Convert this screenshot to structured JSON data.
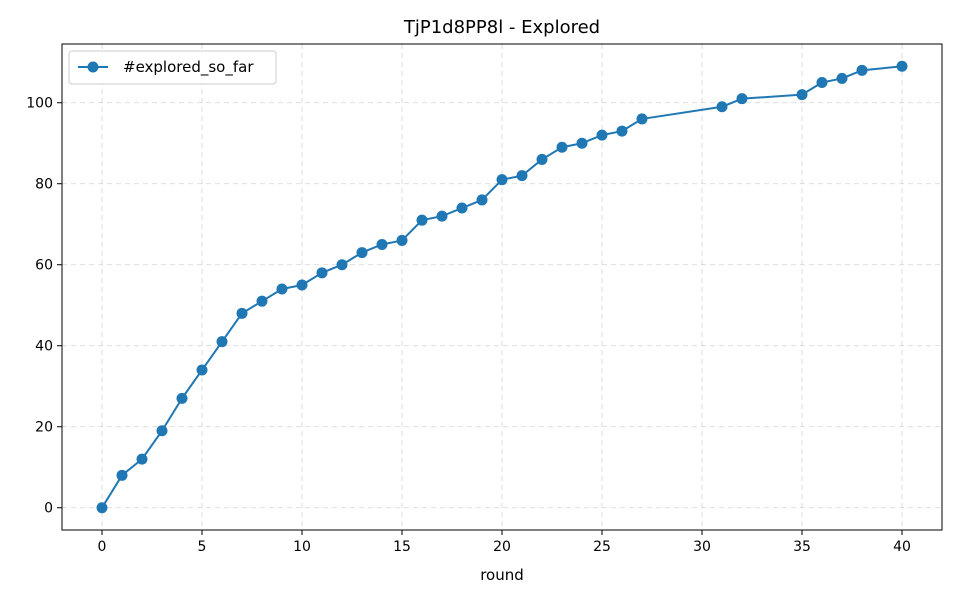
{
  "chart_data": {
    "type": "line",
    "title": "TjP1d8PP8l - Explored",
    "xlabel": "round",
    "ylabel": "",
    "xlim": [
      -2,
      42
    ],
    "ylim": [
      -5.5,
      114.5
    ],
    "x_ticks": [
      0,
      5,
      10,
      15,
      20,
      25,
      30,
      35,
      40
    ],
    "y_ticks": [
      0,
      20,
      40,
      60,
      80,
      100
    ],
    "grid": true,
    "legend_position": "upper-left",
    "series": [
      {
        "name": "#explored_so_far",
        "color": "#1f77b4",
        "x": [
          0,
          1,
          2,
          3,
          4,
          5,
          6,
          7,
          8,
          9,
          10,
          11,
          12,
          13,
          14,
          15,
          16,
          17,
          18,
          19,
          20,
          21,
          22,
          23,
          24,
          25,
          26,
          27,
          31,
          32,
          35,
          36,
          37,
          38,
          40
        ],
        "y": [
          0,
          8,
          12,
          19,
          27,
          34,
          41,
          48,
          51,
          54,
          55,
          58,
          60,
          63,
          65,
          66,
          71,
          72,
          74,
          76,
          81,
          82,
          86,
          89,
          90,
          92,
          93,
          96,
          99,
          101,
          102,
          105,
          106,
          108,
          109
        ]
      }
    ]
  }
}
